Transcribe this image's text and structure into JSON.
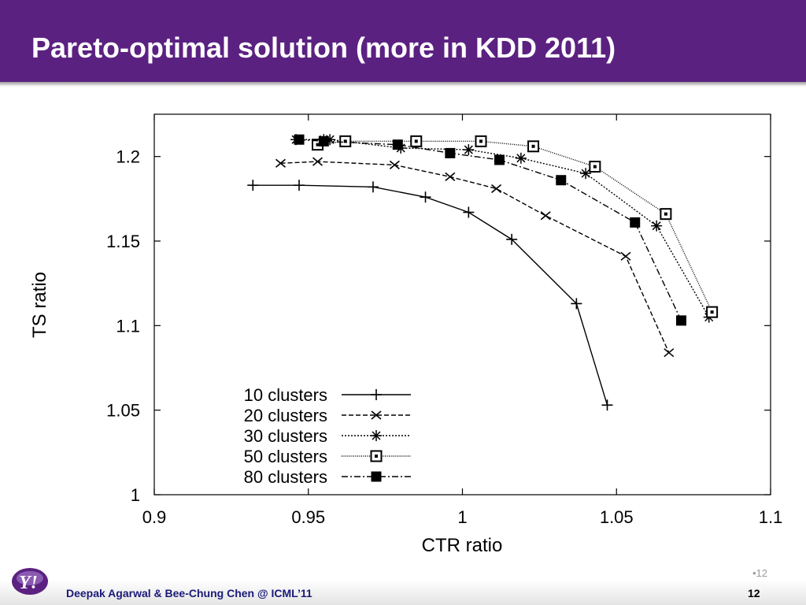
{
  "slide": {
    "title": "Pareto-optimal solution (more in KDD 2011)",
    "footer": "Deepak Agarwal & Bee-Chung Chen @ ICML’11",
    "page_number": "12",
    "page_number_faint": "•12",
    "logo_text": "Y!"
  },
  "colors": {
    "title_bar": "#5b2181",
    "footer_text": "#1a1a7a",
    "logo": "#5b2181",
    "series": "#000000"
  },
  "chart_data": {
    "type": "line",
    "xlabel": "CTR ratio",
    "ylabel": "TS ratio",
    "xlim": [
      0.9,
      1.1
    ],
    "ylim": [
      1.0,
      1.225
    ],
    "x_ticks": [
      0.9,
      0.95,
      1.0,
      1.05,
      1.1
    ],
    "x_tick_labels": [
      "0.9",
      "0.95",
      "1",
      "1.05",
      "1.1"
    ],
    "y_ticks": [
      1.0,
      1.05,
      1.1,
      1.15,
      1.2
    ],
    "y_tick_labels": [
      "1",
      "1.05",
      "1.1",
      "1.15",
      "1.2"
    ],
    "grid": false,
    "legend_position": "bottom-left",
    "series": [
      {
        "name": "10 clusters",
        "marker": "plus",
        "dash": "solid",
        "x": [
          0.932,
          0.947,
          0.971,
          0.988,
          1.002,
          1.016,
          1.037,
          1.047
        ],
        "y": [
          1.183,
          1.183,
          1.182,
          1.176,
          1.167,
          1.151,
          1.113,
          1.053
        ]
      },
      {
        "name": "20 clusters",
        "marker": "x",
        "dash": "dashed",
        "x": [
          0.941,
          0.953,
          0.978,
          0.996,
          1.011,
          1.027,
          1.053,
          1.067
        ],
        "y": [
          1.196,
          1.197,
          1.195,
          1.188,
          1.181,
          1.165,
          1.141,
          1.084
        ]
      },
      {
        "name": "30 clusters",
        "marker": "star",
        "dash": "dotted",
        "x": [
          0.946,
          0.955,
          0.957,
          0.98,
          1.002,
          1.019,
          1.04,
          1.063,
          1.08
        ],
        "y": [
          1.21,
          1.21,
          1.21,
          1.205,
          1.204,
          1.199,
          1.19,
          1.159,
          1.105
        ]
      },
      {
        "name": "50 clusters",
        "marker": "square-open",
        "dash": "fine-dotted",
        "x": [
          0.953,
          0.962,
          0.985,
          1.006,
          1.023,
          1.043,
          1.066,
          1.081
        ],
        "y": [
          1.207,
          1.209,
          1.209,
          1.209,
          1.206,
          1.194,
          1.166,
          1.108
        ]
      },
      {
        "name": "80 clusters",
        "marker": "square-filled",
        "dash": "dash-dot",
        "x": [
          0.947,
          0.955,
          0.979,
          0.996,
          1.012,
          1.032,
          1.056,
          1.071
        ],
        "y": [
          1.21,
          1.209,
          1.207,
          1.202,
          1.198,
          1.186,
          1.161,
          1.103
        ]
      }
    ]
  }
}
